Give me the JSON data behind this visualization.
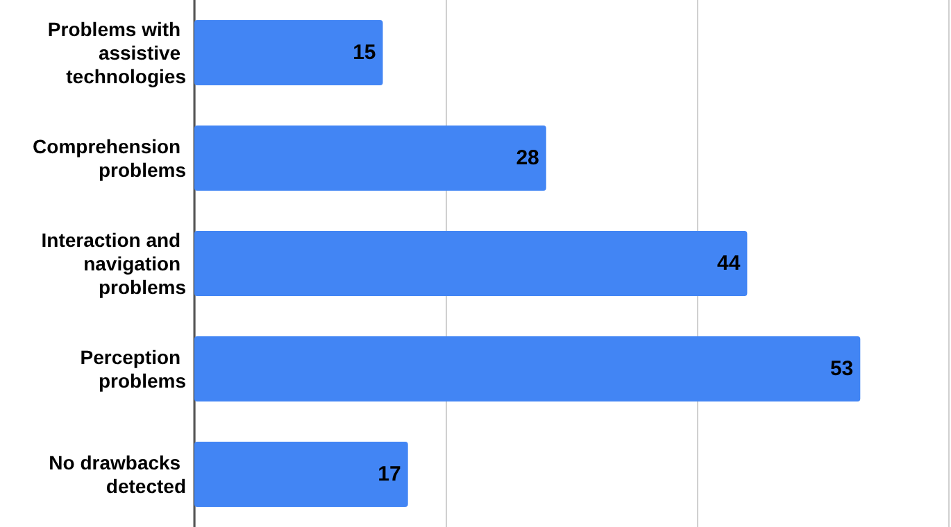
{
  "chart_data": {
    "type": "bar",
    "orientation": "horizontal",
    "categories": [
      "Problems with assistive technologies",
      "Comprehension problems",
      "Interaction and navigation problems",
      "Perception problems",
      "No drawbacks detected"
    ],
    "values": [
      15,
      28,
      44,
      53,
      17
    ],
    "color": "#4285f4",
    "data_labels": true,
    "xlim": [
      0,
      60
    ],
    "xticks": [
      {
        "value": 0,
        "label": null
      },
      {
        "value": 20,
        "label": null
      },
      {
        "value": 40,
        "label": null
      },
      {
        "value": 60,
        "label": null
      }
    ],
    "tick_labels": "y",
    "grid": "x"
  }
}
